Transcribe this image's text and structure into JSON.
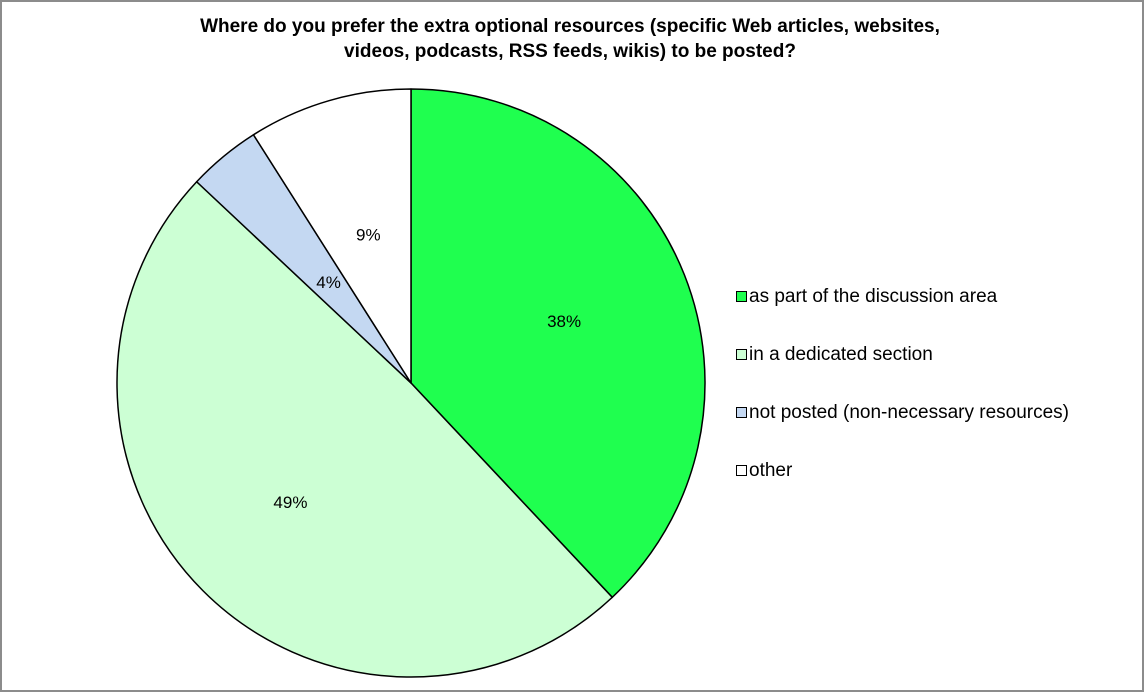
{
  "chart_data": {
    "type": "pie",
    "title_lines": [
      "Where do you prefer the extra optional resources (specific Web articles, websites,",
      "videos, podcasts, RSS feeds, wikis) to be posted?"
    ],
    "categories": [
      "as part of the discussion area",
      "in a dedicated section",
      "not posted (non-necessary resources)",
      "other"
    ],
    "values": [
      38,
      49,
      4,
      9
    ],
    "data_labels": [
      "38%",
      "49%",
      "4%",
      "9%"
    ],
    "colors": [
      "#1fff4f",
      "#ccffd4",
      "#c4d8f2",
      "#ffffff"
    ],
    "start_angle_deg": 0,
    "direction": "clockwise",
    "legend_position": "right"
  }
}
